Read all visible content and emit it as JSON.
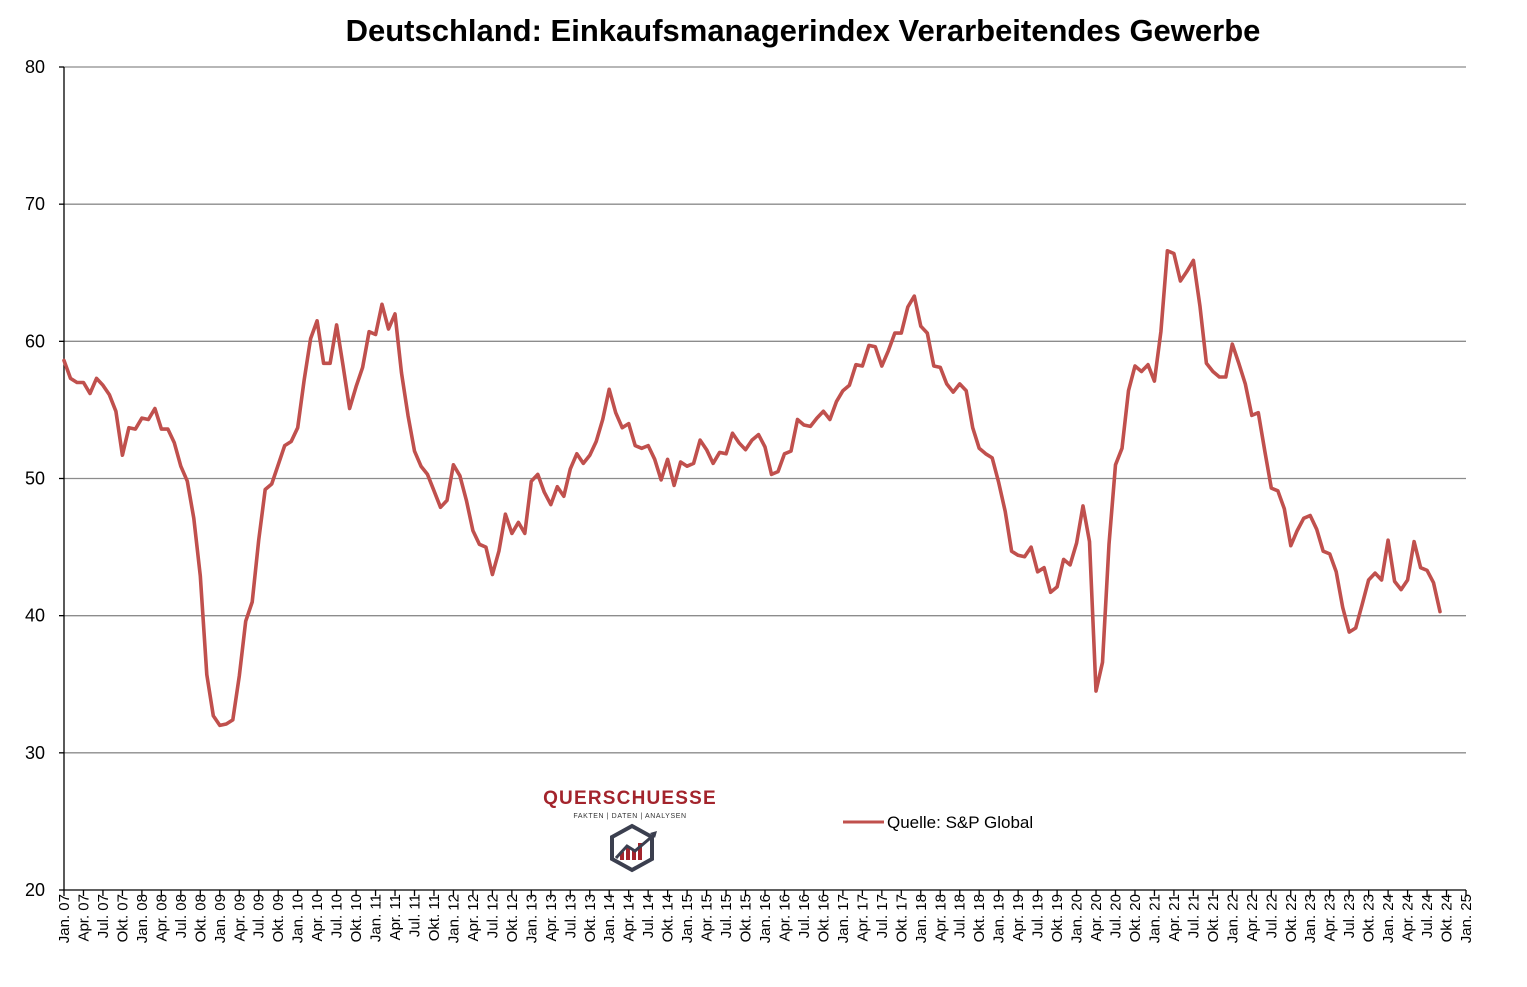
{
  "colors": {
    "series": "#c0504d",
    "grid": "#8c8c8c",
    "axis": "#000000",
    "logo_red": "#a3242c",
    "logo_dark": "#3b3f4f"
  },
  "logo": {
    "name": "QUERSCHUESSE",
    "tagline": "FAKTEN | DATEN | ANALYSEN"
  },
  "chart_data": {
    "type": "line",
    "title": "Deutschland: Einkaufsmanagerindex Verarbeitendes Gewerbe",
    "xlabel": "",
    "ylabel": "",
    "ylim": [
      20,
      80
    ],
    "yticks": [
      20,
      30,
      40,
      50,
      60,
      70,
      80
    ],
    "grid": true,
    "legend_position": "bottom-center",
    "x_tick_labels": [
      "Jan. 07",
      "Apr. 07",
      "Jul. 07",
      "Okt. 07",
      "Jan. 08",
      "Apr. 08",
      "Jul. 08",
      "Okt. 08",
      "Jan. 09",
      "Apr. 09",
      "Jul. 09",
      "Okt. 09",
      "Jan. 10",
      "Apr. 10",
      "Jul. 10",
      "Okt. 10",
      "Jan. 11",
      "Apr. 11",
      "Jul. 11",
      "Okt. 11",
      "Jan. 12",
      "Apr. 12",
      "Jul. 12",
      "Okt. 12",
      "Jan. 13",
      "Apr. 13",
      "Jul. 13",
      "Okt. 13",
      "Jan. 14",
      "Apr. 14",
      "Jul. 14",
      "Okt. 14",
      "Jan. 15",
      "Apr. 15",
      "Jul. 15",
      "Okt. 15",
      "Jan. 16",
      "Apr. 16",
      "Jul. 16",
      "Okt. 16",
      "Jan. 17",
      "Apr. 17",
      "Jul. 17",
      "Okt. 17",
      "Jan. 18",
      "Apr. 18",
      "Jul. 18",
      "Okt. 18",
      "Jan. 19",
      "Apr. 19",
      "Jul. 19",
      "Okt. 19",
      "Jan. 20",
      "Apr. 20",
      "Jul. 20",
      "Okt. 20",
      "Jan. 21",
      "Apr. 21",
      "Jul. 21",
      "Okt. 21",
      "Jan. 22",
      "Apr. 22",
      "Jul. 22",
      "Okt. 22",
      "Jan. 23",
      "Apr. 23",
      "Jul. 23",
      "Okt. 23",
      "Jan. 24",
      "Apr. 24",
      "Jul. 24",
      "Okt. 24",
      "Jan. 25"
    ],
    "x_start": "2007-01",
    "x_end": "2025-01",
    "series": [
      {
        "name": "Quelle: S&P Global",
        "x_start": "2007-01",
        "frequency": "monthly",
        "values": [
          58.6,
          57.3,
          57.0,
          57.0,
          56.2,
          57.3,
          56.8,
          56.1,
          54.9,
          51.7,
          53.7,
          53.6,
          54.4,
          54.3,
          55.1,
          53.6,
          53.6,
          52.6,
          50.9,
          49.8,
          47.1,
          42.9,
          35.7,
          32.7,
          32.0,
          32.1,
          32.4,
          35.6,
          39.6,
          41.0,
          45.5,
          49.2,
          49.6,
          51.0,
          52.4,
          52.7,
          53.7,
          57.2,
          60.2,
          61.5,
          58.4,
          58.4,
          61.2,
          58.2,
          55.1,
          56.7,
          58.1,
          60.7,
          60.5,
          62.7,
          60.9,
          62.0,
          57.7,
          54.6,
          52.0,
          50.9,
          50.3,
          49.1,
          47.9,
          48.4,
          51.0,
          50.2,
          48.4,
          46.2,
          45.2,
          45.0,
          43.0,
          44.7,
          47.4,
          46.0,
          46.8,
          46.0,
          49.8,
          50.3,
          49.0,
          48.1,
          49.4,
          48.7,
          50.7,
          51.8,
          51.1,
          51.7,
          52.7,
          54.3,
          56.5,
          54.8,
          53.7,
          54.0,
          52.4,
          52.2,
          52.4,
          51.4,
          49.9,
          51.4,
          49.5,
          51.2,
          50.9,
          51.1,
          52.8,
          52.1,
          51.1,
          51.9,
          51.8,
          53.3,
          52.6,
          52.1,
          52.8,
          53.2,
          52.3,
          50.3,
          50.5,
          51.8,
          52.0,
          54.3,
          53.9,
          53.8,
          54.4,
          54.9,
          54.3,
          55.6,
          56.4,
          56.8,
          58.3,
          58.2,
          59.7,
          59.6,
          58.2,
          59.3,
          60.6,
          60.6,
          62.5,
          63.3,
          61.1,
          60.6,
          58.2,
          58.1,
          56.9,
          56.3,
          56.9,
          56.4,
          53.7,
          52.2,
          51.8,
          51.5,
          49.7,
          47.6,
          44.7,
          44.4,
          44.3,
          45.0,
          43.2,
          43.5,
          41.7,
          42.1,
          44.1,
          43.7,
          45.3,
          48.0,
          45.4,
          34.5,
          36.6,
          45.2,
          51.0,
          52.2,
          56.4,
          58.2,
          57.8,
          58.3,
          57.1,
          60.7,
          66.6,
          66.4,
          64.4,
          65.1,
          65.9,
          62.6,
          58.4,
          57.8,
          57.4,
          57.4,
          59.8,
          58.4,
          56.9,
          54.6,
          54.8,
          52.0,
          49.3,
          49.1,
          47.8,
          45.1,
          46.2,
          47.1,
          47.3,
          46.3,
          44.7,
          44.5,
          43.2,
          40.6,
          38.8,
          39.1,
          40.8,
          42.6,
          43.1,
          42.6,
          45.5,
          42.5,
          41.9,
          42.6,
          45.4,
          43.5,
          43.3,
          42.4,
          40.3
        ]
      }
    ]
  }
}
